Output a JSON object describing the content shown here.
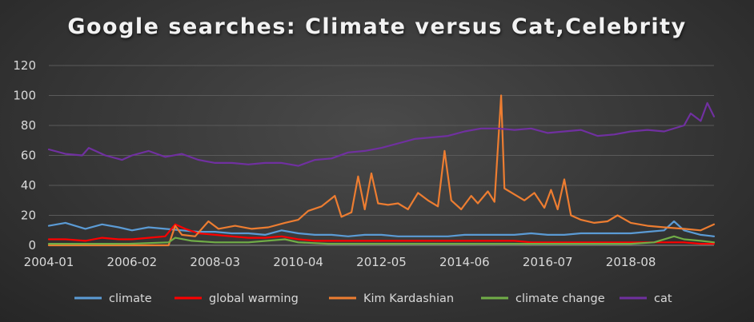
{
  "title": "Google searches: Climate versus Cat,Celebrity",
  "chart_data": {
    "type": "line",
    "title": "Google searches: Climate versus Cat,Celebrity",
    "xlabel": "",
    "ylabel": "",
    "ylim": [
      0,
      120
    ],
    "yticks": [
      0,
      20,
      40,
      60,
      80,
      100,
      120
    ],
    "x_tick_labels": [
      "2004-01",
      "2006-02",
      "2008-03",
      "2010-04",
      "2012-05",
      "2014-06",
      "2016-07",
      "2018-08"
    ],
    "x_range": [
      "2004-01",
      "2020-09"
    ],
    "grid": true,
    "legend_position": "bottom",
    "series": [
      {
        "name": "climate",
        "color": "#5b9bd5",
        "points": [
          [
            "2004-01",
            13
          ],
          [
            "2004-06",
            15
          ],
          [
            "2004-12",
            11
          ],
          [
            "2005-05",
            14
          ],
          [
            "2005-10",
            12
          ],
          [
            "2006-02",
            10
          ],
          [
            "2006-07",
            12
          ],
          [
            "2006-12",
            11
          ],
          [
            "2007-05",
            10
          ],
          [
            "2007-10",
            9
          ],
          [
            "2008-03",
            9
          ],
          [
            "2008-08",
            8
          ],
          [
            "2009-01",
            8
          ],
          [
            "2009-06",
            7
          ],
          [
            "2009-11",
            10
          ],
          [
            "2010-04",
            8
          ],
          [
            "2010-09",
            7
          ],
          [
            "2011-02",
            7
          ],
          [
            "2011-07",
            6
          ],
          [
            "2011-12",
            7
          ],
          [
            "2012-05",
            7
          ],
          [
            "2012-10",
            6
          ],
          [
            "2013-03",
            6
          ],
          [
            "2013-08",
            6
          ],
          [
            "2014-01",
            6
          ],
          [
            "2014-06",
            7
          ],
          [
            "2014-11",
            7
          ],
          [
            "2015-04",
            7
          ],
          [
            "2015-09",
            7
          ],
          [
            "2016-02",
            8
          ],
          [
            "2016-07",
            7
          ],
          [
            "2016-12",
            7
          ],
          [
            "2017-05",
            8
          ],
          [
            "2017-10",
            8
          ],
          [
            "2018-03",
            8
          ],
          [
            "2018-08",
            8
          ],
          [
            "2019-01",
            9
          ],
          [
            "2019-06",
            10
          ],
          [
            "2019-09",
            16
          ],
          [
            "2019-12",
            10
          ],
          [
            "2020-05",
            7
          ],
          [
            "2020-09",
            6
          ]
        ]
      },
      {
        "name": "global warming",
        "color": "#ff0000",
        "points": [
          [
            "2004-01",
            4
          ],
          [
            "2004-06",
            4
          ],
          [
            "2004-12",
            3
          ],
          [
            "2005-05",
            5
          ],
          [
            "2005-10",
            4
          ],
          [
            "2006-02",
            4
          ],
          [
            "2006-07",
            5
          ],
          [
            "2006-12",
            6
          ],
          [
            "2007-03",
            14
          ],
          [
            "2007-06",
            11
          ],
          [
            "2007-10",
            8
          ],
          [
            "2008-03",
            7
          ],
          [
            "2008-08",
            6
          ],
          [
            "2009-01",
            5
          ],
          [
            "2009-06",
            5
          ],
          [
            "2009-11",
            6
          ],
          [
            "2010-04",
            4
          ],
          [
            "2010-09",
            3
          ],
          [
            "2011-02",
            3
          ],
          [
            "2011-07",
            3
          ],
          [
            "2011-12",
            3
          ],
          [
            "2012-05",
            3
          ],
          [
            "2012-10",
            3
          ],
          [
            "2013-03",
            3
          ],
          [
            "2013-08",
            3
          ],
          [
            "2014-01",
            3
          ],
          [
            "2014-06",
            3
          ],
          [
            "2014-11",
            3
          ],
          [
            "2015-04",
            3
          ],
          [
            "2015-09",
            3
          ],
          [
            "2016-02",
            2
          ],
          [
            "2016-07",
            2
          ],
          [
            "2016-12",
            2
          ],
          [
            "2017-05",
            2
          ],
          [
            "2017-10",
            2
          ],
          [
            "2018-03",
            2
          ],
          [
            "2018-08",
            2
          ],
          [
            "2019-01",
            2
          ],
          [
            "2019-06",
            2
          ],
          [
            "2019-12",
            2
          ],
          [
            "2020-05",
            1
          ],
          [
            "2020-09",
            1
          ]
        ]
      },
      {
        "name": "Kim Kardashian",
        "color": "#ed7d31",
        "points": [
          [
            "2004-01",
            0
          ],
          [
            "2006-02",
            0
          ],
          [
            "2007-01",
            0
          ],
          [
            "2007-03",
            13
          ],
          [
            "2007-05",
            7
          ],
          [
            "2007-09",
            6
          ],
          [
            "2008-01",
            16
          ],
          [
            "2008-04",
            11
          ],
          [
            "2008-09",
            13
          ],
          [
            "2009-02",
            11
          ],
          [
            "2009-07",
            12
          ],
          [
            "2009-12",
            15
          ],
          [
            "2010-04",
            17
          ],
          [
            "2010-07",
            23
          ],
          [
            "2010-11",
            26
          ],
          [
            "2011-03",
            33
          ],
          [
            "2011-05",
            19
          ],
          [
            "2011-08",
            22
          ],
          [
            "2011-10",
            46
          ],
          [
            "2011-12",
            24
          ],
          [
            "2012-02",
            48
          ],
          [
            "2012-04",
            28
          ],
          [
            "2012-07",
            27
          ],
          [
            "2012-10",
            28
          ],
          [
            "2013-01",
            24
          ],
          [
            "2013-04",
            35
          ],
          [
            "2013-07",
            30
          ],
          [
            "2013-10",
            26
          ],
          [
            "2013-12",
            63
          ],
          [
            "2014-02",
            30
          ],
          [
            "2014-05",
            24
          ],
          [
            "2014-08",
            33
          ],
          [
            "2014-10",
            28
          ],
          [
            "2015-01",
            36
          ],
          [
            "2015-03",
            29
          ],
          [
            "2015-05",
            100
          ],
          [
            "2015-06",
            38
          ],
          [
            "2015-09",
            34
          ],
          [
            "2015-12",
            30
          ],
          [
            "2016-03",
            35
          ],
          [
            "2016-06",
            25
          ],
          [
            "2016-08",
            37
          ],
          [
            "2016-10",
            24
          ],
          [
            "2016-12",
            44
          ],
          [
            "2017-02",
            20
          ],
          [
            "2017-05",
            17
          ],
          [
            "2017-09",
            15
          ],
          [
            "2018-01",
            16
          ],
          [
            "2018-04",
            20
          ],
          [
            "2018-08",
            15
          ],
          [
            "2019-01",
            13
          ],
          [
            "2019-06",
            12
          ],
          [
            "2019-12",
            11
          ],
          [
            "2020-05",
            10
          ],
          [
            "2020-09",
            14
          ]
        ]
      },
      {
        "name": "climate change",
        "color": "#70ad47",
        "points": [
          [
            "2004-01",
            1
          ],
          [
            "2005-01",
            1
          ],
          [
            "2006-01",
            1
          ],
          [
            "2007-01",
            2
          ],
          [
            "2007-03",
            5
          ],
          [
            "2007-08",
            3
          ],
          [
            "2008-03",
            2
          ],
          [
            "2009-01",
            2
          ],
          [
            "2009-12",
            4
          ],
          [
            "2010-04",
            2
          ],
          [
            "2011-01",
            1
          ],
          [
            "2012-01",
            1
          ],
          [
            "2013-01",
            1
          ],
          [
            "2014-01",
            1
          ],
          [
            "2014-06",
            1
          ],
          [
            "2015-06",
            1
          ],
          [
            "2016-07",
            1
          ],
          [
            "2017-06",
            1
          ],
          [
            "2018-08",
            1
          ],
          [
            "2019-03",
            2
          ],
          [
            "2019-09",
            6
          ],
          [
            "2019-12",
            4
          ],
          [
            "2020-05",
            3
          ],
          [
            "2020-09",
            2
          ]
        ]
      },
      {
        "name": "cat",
        "color": "#7030a0",
        "points": [
          [
            "2004-01",
            64
          ],
          [
            "2004-06",
            61
          ],
          [
            "2004-11",
            60
          ],
          [
            "2005-01",
            65
          ],
          [
            "2005-06",
            60
          ],
          [
            "2005-11",
            57
          ],
          [
            "2006-02",
            60
          ],
          [
            "2006-07",
            63
          ],
          [
            "2006-12",
            59
          ],
          [
            "2007-05",
            61
          ],
          [
            "2007-10",
            57
          ],
          [
            "2008-03",
            55
          ],
          [
            "2008-08",
            55
          ],
          [
            "2009-01",
            54
          ],
          [
            "2009-06",
            55
          ],
          [
            "2009-11",
            55
          ],
          [
            "2010-04",
            53
          ],
          [
            "2010-09",
            57
          ],
          [
            "2011-02",
            58
          ],
          [
            "2011-07",
            62
          ],
          [
            "2011-12",
            63
          ],
          [
            "2012-05",
            65
          ],
          [
            "2012-10",
            68
          ],
          [
            "2013-03",
            71
          ],
          [
            "2013-08",
            72
          ],
          [
            "2014-01",
            73
          ],
          [
            "2014-06",
            76
          ],
          [
            "2014-11",
            78
          ],
          [
            "2015-04",
            78
          ],
          [
            "2015-09",
            77
          ],
          [
            "2016-02",
            78
          ],
          [
            "2016-07",
            75
          ],
          [
            "2016-12",
            76
          ],
          [
            "2017-05",
            77
          ],
          [
            "2017-10",
            73
          ],
          [
            "2018-03",
            74
          ],
          [
            "2018-08",
            76
          ],
          [
            "2019-01",
            77
          ],
          [
            "2019-06",
            76
          ],
          [
            "2019-12",
            80
          ],
          [
            "2020-02",
            88
          ],
          [
            "2020-05",
            83
          ],
          [
            "2020-07",
            95
          ],
          [
            "2020-09",
            86
          ]
        ]
      }
    ]
  }
}
